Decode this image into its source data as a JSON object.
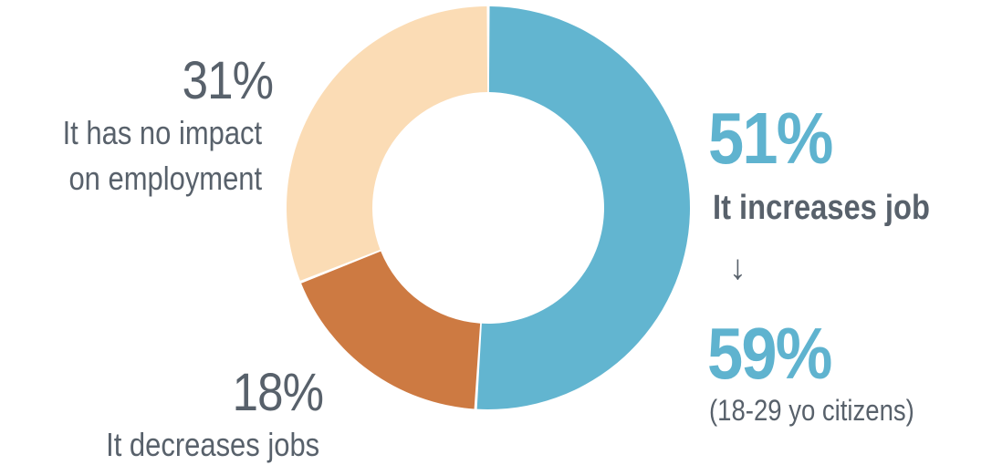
{
  "chart_data": {
    "type": "pie",
    "slices": [
      {
        "label": "It increases job",
        "value": 51,
        "display": "51%",
        "color": "#62b5d0"
      },
      {
        "label": "It decreases jobs",
        "value": 18,
        "display": "18%",
        "color": "#cd7a42"
      },
      {
        "label": "It has no impact on employment",
        "value": 31,
        "display": "31%",
        "color": "#fbdcb5"
      }
    ]
  },
  "labels": {
    "no_impact": {
      "pct": "31%",
      "line1": "It has no impact",
      "line2": "on employment"
    },
    "decreases": {
      "pct": "18%",
      "text": "It decreases jobs"
    },
    "increases": {
      "pct": "51%",
      "text": "It increases job"
    },
    "arrow": "↓",
    "youth": {
      "pct": "59%",
      "text": "(18-29 yo citizens)"
    }
  }
}
